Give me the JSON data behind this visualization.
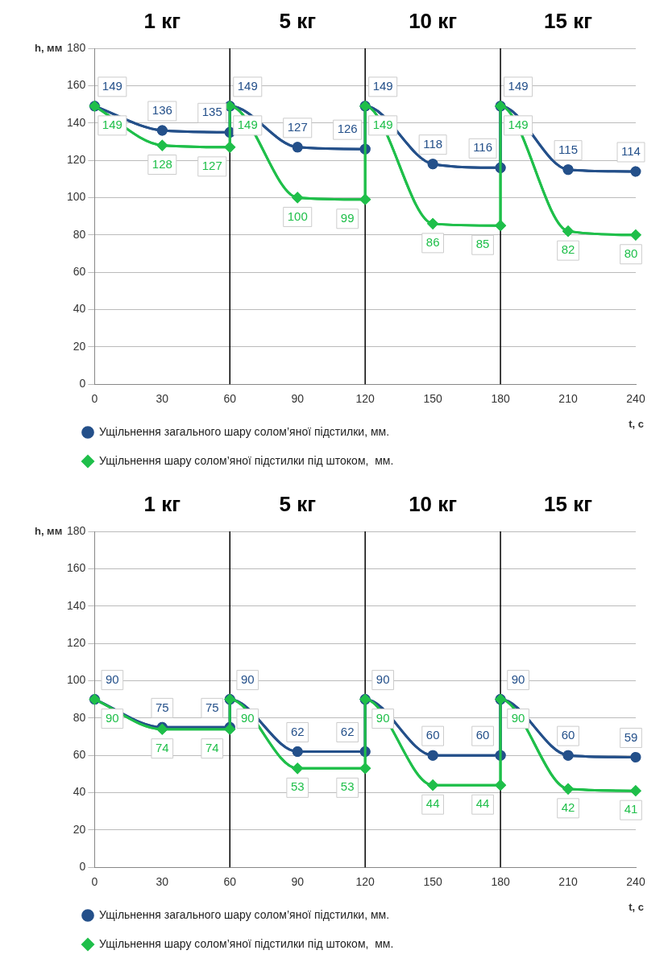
{
  "chart_data": [
    {
      "type": "line",
      "xlabel": "t, с",
      "ylabel": "h, мм",
      "x": [
        0,
        30,
        60,
        60,
        90,
        120,
        120,
        150,
        180,
        180,
        210,
        240
      ],
      "xlim": [
        0,
        240
      ],
      "xticks": [
        0,
        30,
        60,
        90,
        120,
        150,
        180,
        210,
        240
      ],
      "ylim": [
        0,
        180
      ],
      "yticks": [
        0,
        20,
        40,
        60,
        80,
        100,
        120,
        140,
        160,
        180
      ],
      "grid": "y",
      "legend": "bottom",
      "data_labels": true,
      "ref_lines": [
        {
          "axis": "x",
          "value": 60,
          "color": "#000000"
        },
        {
          "axis": "x",
          "value": 120,
          "color": "#000000"
        },
        {
          "axis": "x",
          "value": 180,
          "color": "#000000"
        }
      ],
      "annotations": [
        "1 кг",
        "5 кг",
        "10 кг",
        "15 кг"
      ],
      "series": [
        {
          "name": "Ущільнення загального шару солом’яної підстилки, мм.",
          "color": "#24508a",
          "marker": "circle",
          "values": [
            149,
            136,
            135,
            149,
            127,
            126,
            149,
            118,
            116,
            149,
            115,
            114
          ]
        },
        {
          "name": "Ущільнення шару солом’яної підстилки під штоком,  мм.",
          "color": "#1fbf4a",
          "marker": "diamond",
          "values": [
            149,
            128,
            127,
            149,
            100,
            99,
            149,
            86,
            85,
            149,
            82,
            80
          ]
        }
      ]
    },
    {
      "type": "line",
      "xlabel": "t, с",
      "ylabel": "h, мм",
      "x": [
        0,
        30,
        60,
        60,
        90,
        120,
        120,
        150,
        180,
        180,
        210,
        240
      ],
      "xlim": [
        0,
        240
      ],
      "xticks": [
        0,
        30,
        60,
        90,
        120,
        150,
        180,
        210,
        240
      ],
      "ylim": [
        0,
        180
      ],
      "yticks": [
        0,
        20,
        40,
        60,
        80,
        100,
        120,
        140,
        160,
        180
      ],
      "grid": "y",
      "legend": "bottom",
      "data_labels": true,
      "ref_lines": [
        {
          "axis": "x",
          "value": 60,
          "color": "#000000"
        },
        {
          "axis": "x",
          "value": 120,
          "color": "#000000"
        },
        {
          "axis": "x",
          "value": 180,
          "color": "#000000"
        }
      ],
      "annotations": [
        "1 кг",
        "5 кг",
        "10 кг",
        "15 кг"
      ],
      "series": [
        {
          "name": "Ущільнення загального шару солом’яної підстилки, мм.",
          "color": "#24508a",
          "marker": "circle",
          "values": [
            90,
            75,
            75,
            90,
            62,
            62,
            90,
            60,
            60,
            90,
            60,
            59
          ]
        },
        {
          "name": "Ущільнення шару солом’яної підстилки під штоком,  мм.",
          "color": "#1fbf4a",
          "marker": "diamond",
          "values": [
            90,
            74,
            74,
            90,
            53,
            53,
            90,
            44,
            44,
            90,
            42,
            41
          ]
        }
      ]
    }
  ]
}
